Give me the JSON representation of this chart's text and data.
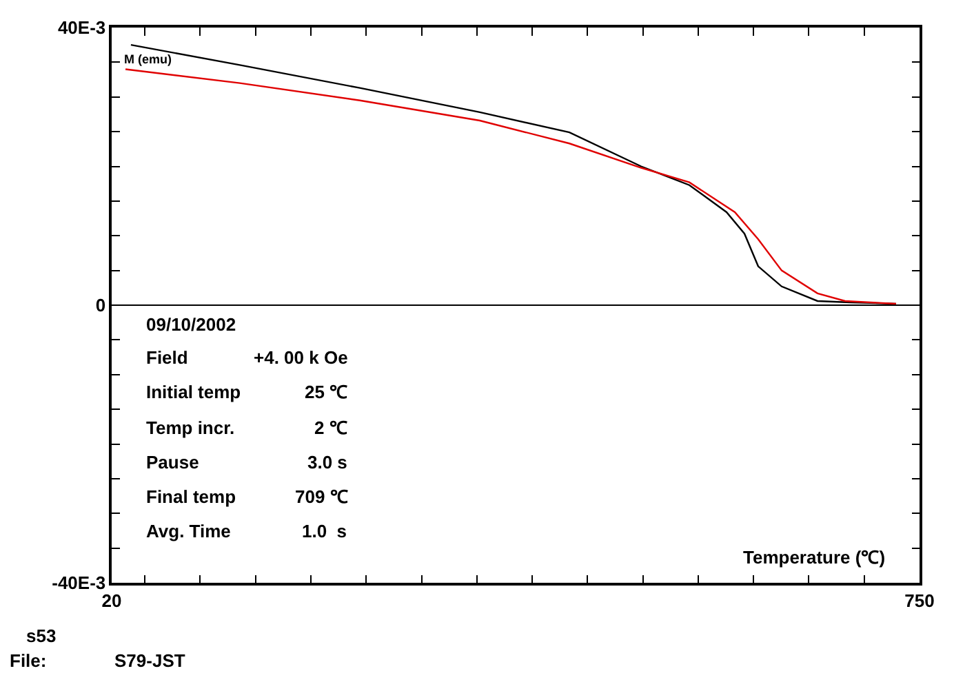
{
  "chart_data": {
    "type": "line",
    "xlabel": "Temperature (℃)",
    "ylabel": "M (emu)",
    "xlim": [
      20,
      750
    ],
    "ylim": [
      -0.04,
      0.04
    ],
    "xticks": [
      20,
      {
        "value": 50,
        "label": null
      },
      {
        "value": 100,
        "label": null
      },
      {
        "value": 150,
        "label": null
      },
      {
        "value": 200,
        "label": null
      },
      {
        "value": 250,
        "label": null
      },
      {
        "value": 300,
        "label": null
      },
      {
        "value": 350,
        "label": null
      },
      {
        "value": 400,
        "label": null
      },
      {
        "value": 450,
        "label": null
      },
      {
        "value": 500,
        "label": null
      },
      {
        "value": 550,
        "label": null
      },
      {
        "value": 600,
        "label": null
      },
      {
        "value": 650,
        "label": null
      },
      {
        "value": 700,
        "label": null
      },
      750
    ],
    "yticks": [
      {
        "value": -0.04,
        "label": "-40E-3"
      },
      {
        "value": -0.035,
        "label": null
      },
      {
        "value": -0.03,
        "label": null
      },
      {
        "value": -0.025,
        "label": null
      },
      {
        "value": -0.02,
        "label": null
      },
      {
        "value": -0.015,
        "label": null
      },
      {
        "value": -0.01,
        "label": null
      },
      {
        "value": -0.005,
        "label": null
      },
      0,
      {
        "value": 0.005,
        "label": null
      },
      {
        "value": 0.01,
        "label": null
      },
      {
        "value": 0.015,
        "label": null
      },
      {
        "value": 0.02,
        "label": null
      },
      {
        "value": 0.025,
        "label": null
      },
      {
        "value": 0.03,
        "label": null
      },
      {
        "value": 0.035,
        "label": null
      },
      {
        "value": 0.04,
        "label": "40E-3"
      }
    ],
    "marker": "none",
    "line_style": "solid",
    "ref_lines": [
      {
        "axis": "y",
        "value": 0,
        "color": "#000000"
      }
    ],
    "series": [
      {
        "color": "#000000",
        "x": [
          37.4,
          135.8,
          244.2,
          352.6,
          433.6,
          498.4,
          542,
          575.6,
          591.8,
          604.2,
          625.4,
          657.8,
          687.7,
          728.8
        ],
        "values": [
          0.0375,
          0.0346,
          0.0313,
          0.0278,
          0.0249,
          0.02,
          0.0173,
          0.0134,
          0.0103,
          0.0056,
          0.0027,
          0.0006,
          0.0004,
          0.0002
        ]
      },
      {
        "color": "#e00000",
        "x": [
          32.5,
          135.8,
          244.2,
          352.6,
          433.6,
          498.4,
          542,
          583.1,
          604.2,
          625.4,
          657.8,
          682.7,
          728.8
        ],
        "values": [
          0.034,
          0.032,
          0.0295,
          0.0266,
          0.0233,
          0.0198,
          0.0177,
          0.0134,
          0.0095,
          0.005,
          0.0017,
          0.0006,
          0.0002
        ]
      }
    ],
    "annotations": [
      "09/10/2002",
      "Field",
      "+4. 00 k Oe",
      "Initial temp",
      "25 ℃",
      "Temp incr.",
      "2 ℃",
      "Pause",
      "3.0 s",
      "Final temp",
      "709 ℃",
      "Avg. Time",
      "1.0  s",
      "s53",
      "File:",
      "S79-JST"
    ]
  }
}
